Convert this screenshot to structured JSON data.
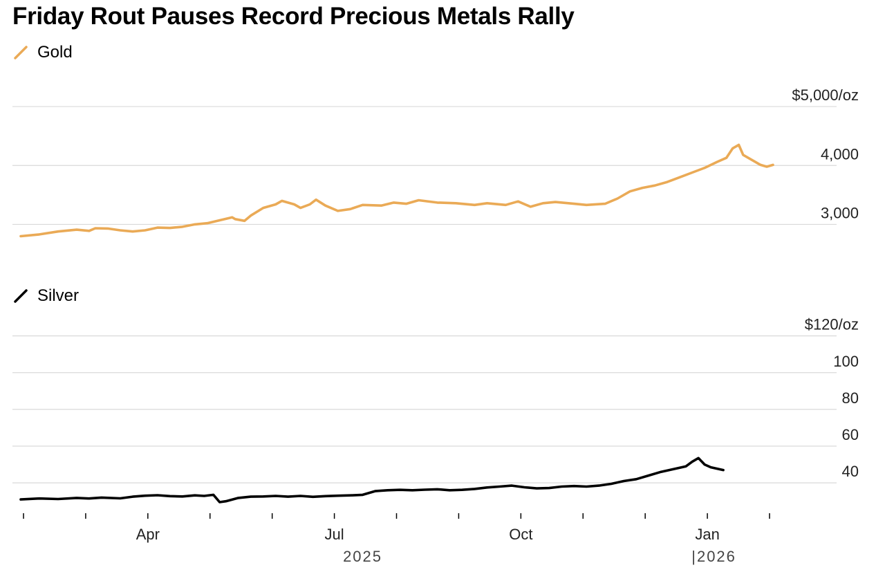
{
  "title": "Friday Rout Pauses Record Precious Metals Rally",
  "colors": {
    "gold": "#EAAA56",
    "silver": "#000000",
    "grid": "#d9d9d9"
  },
  "chart_data": [
    {
      "type": "line",
      "name": "Gold",
      "legend": "Gold",
      "unit": "$/oz",
      "ylim": [
        2700,
        5400
      ],
      "yticks": [
        {
          "value": 5000,
          "label": "$5,000/oz"
        },
        {
          "value": 4000,
          "label": "4,000"
        },
        {
          "value": 3000,
          "label": "3,000"
        }
      ],
      "x_start": 0,
      "x_end": 12.1,
      "points": [
        [
          0.0,
          2800
        ],
        [
          0.3,
          2830
        ],
        [
          0.6,
          2880
        ],
        [
          0.9,
          2910
        ],
        [
          1.1,
          2890
        ],
        [
          1.2,
          2935
        ],
        [
          1.4,
          2930
        ],
        [
          1.6,
          2900
        ],
        [
          1.8,
          2880
        ],
        [
          2.0,
          2900
        ],
        [
          2.2,
          2945
        ],
        [
          2.4,
          2940
        ],
        [
          2.6,
          2960
        ],
        [
          2.8,
          3000
        ],
        [
          3.0,
          3020
        ],
        [
          3.2,
          3070
        ],
        [
          3.4,
          3120
        ],
        [
          3.45,
          3090
        ],
        [
          3.6,
          3060
        ],
        [
          3.7,
          3150
        ],
        [
          3.9,
          3280
        ],
        [
          4.1,
          3340
        ],
        [
          4.2,
          3400
        ],
        [
          4.4,
          3340
        ],
        [
          4.5,
          3280
        ],
        [
          4.65,
          3340
        ],
        [
          4.75,
          3420
        ],
        [
          4.9,
          3320
        ],
        [
          5.1,
          3230
        ],
        [
          5.3,
          3260
        ],
        [
          5.5,
          3330
        ],
        [
          5.8,
          3320
        ],
        [
          6.0,
          3370
        ],
        [
          6.2,
          3350
        ],
        [
          6.4,
          3410
        ],
        [
          6.7,
          3370
        ],
        [
          7.0,
          3360
        ],
        [
          7.3,
          3330
        ],
        [
          7.5,
          3360
        ],
        [
          7.8,
          3330
        ],
        [
          8.0,
          3390
        ],
        [
          8.2,
          3300
        ],
        [
          8.4,
          3360
        ],
        [
          8.6,
          3380
        ],
        [
          8.9,
          3350
        ],
        [
          9.1,
          3330
        ],
        [
          9.4,
          3350
        ],
        [
          9.6,
          3440
        ],
        [
          9.8,
          3560
        ],
        [
          10.0,
          3620
        ],
        [
          10.2,
          3660
        ],
        [
          10.4,
          3720
        ],
        [
          10.6,
          3800
        ],
        [
          10.8,
          3880
        ],
        [
          11.0,
          3960
        ],
        [
          11.2,
          4060
        ],
        [
          11.35,
          4130
        ],
        [
          11.45,
          4290
        ],
        [
          11.55,
          4350
        ],
        [
          11.62,
          4180
        ],
        [
          11.75,
          4100
        ],
        [
          11.9,
          4010
        ],
        [
          12.0,
          3980
        ],
        [
          12.1,
          4010
        ]
      ]
    },
    {
      "type": "line",
      "name": "Silver",
      "legend": "Silver",
      "unit": "$/oz",
      "ylim": [
        25,
        124
      ],
      "yticks": [
        {
          "value": 120,
          "label": "$120/oz"
        },
        {
          "value": 100,
          "label": "100"
        },
        {
          "value": 80,
          "label": "80"
        },
        {
          "value": 60,
          "label": "60"
        },
        {
          "value": 40,
          "label": "40"
        }
      ],
      "x_start": 0,
      "x_end": 12.1,
      "points": [
        [
          0.0,
          31.0
        ],
        [
          0.3,
          31.5
        ],
        [
          0.6,
          31.2
        ],
        [
          0.9,
          31.8
        ],
        [
          1.1,
          31.5
        ],
        [
          1.3,
          32.0
        ],
        [
          1.6,
          31.6
        ],
        [
          1.8,
          32.5
        ],
        [
          2.0,
          33.0
        ],
        [
          2.2,
          33.3
        ],
        [
          2.4,
          32.8
        ],
        [
          2.6,
          32.6
        ],
        [
          2.8,
          33.2
        ],
        [
          2.95,
          32.9
        ],
        [
          3.1,
          33.5
        ],
        [
          3.2,
          29.5
        ],
        [
          3.3,
          30.0
        ],
        [
          3.5,
          31.8
        ],
        [
          3.7,
          32.5
        ],
        [
          3.9,
          32.6
        ],
        [
          4.1,
          32.9
        ],
        [
          4.3,
          32.5
        ],
        [
          4.5,
          32.9
        ],
        [
          4.7,
          32.4
        ],
        [
          4.9,
          32.8
        ],
        [
          5.1,
          33.0
        ],
        [
          5.3,
          33.2
        ],
        [
          5.5,
          33.5
        ],
        [
          5.7,
          35.5
        ],
        [
          5.9,
          36.0
        ],
        [
          6.1,
          36.2
        ],
        [
          6.3,
          36.0
        ],
        [
          6.5,
          36.3
        ],
        [
          6.7,
          36.5
        ],
        [
          6.9,
          36.0
        ],
        [
          7.1,
          36.2
        ],
        [
          7.3,
          36.7
        ],
        [
          7.5,
          37.5
        ],
        [
          7.7,
          38.0
        ],
        [
          7.9,
          38.5
        ],
        [
          8.1,
          37.6
        ],
        [
          8.3,
          37.0
        ],
        [
          8.5,
          37.2
        ],
        [
          8.7,
          38.0
        ],
        [
          8.9,
          38.3
        ],
        [
          9.1,
          38.0
        ],
        [
          9.3,
          38.5
        ],
        [
          9.5,
          39.5
        ],
        [
          9.7,
          41.0
        ],
        [
          9.9,
          42.0
        ],
        [
          10.1,
          44.0
        ],
        [
          10.3,
          46.0
        ],
        [
          10.5,
          47.5
        ],
        [
          10.7,
          49.0
        ],
        [
          10.8,
          51.5
        ],
        [
          10.9,
          53.5
        ],
        [
          11.0,
          50.0
        ],
        [
          11.1,
          48.5
        ],
        [
          11.3,
          47.0
        ]
      ]
    }
  ],
  "x_axis": {
    "labels": [
      {
        "label": "Apr",
        "pos": 2.0
      },
      {
        "label": "Jul",
        "pos": 5.0
      },
      {
        "label": "Oct",
        "pos": 8.0
      },
      {
        "label": "Jan",
        "pos": 11.0
      }
    ],
    "years": [
      {
        "label": "2025",
        "pos": 5.5
      },
      {
        "label": "|2026",
        "pos": 11.15
      }
    ],
    "tick_positions": [
      0,
      1,
      2,
      3,
      4,
      5,
      6,
      7,
      8,
      9,
      10,
      11,
      12
    ]
  }
}
